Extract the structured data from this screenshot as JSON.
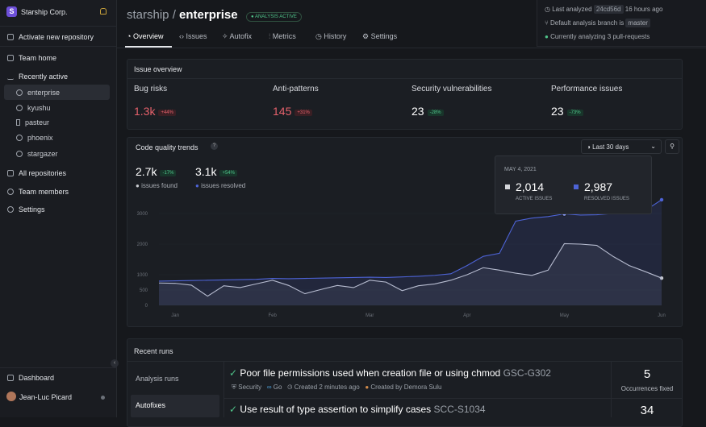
{
  "sidebar": {
    "org": "Starship Corp.",
    "org_initial": "S",
    "activate": "Activate new repository",
    "team_home": "Team home",
    "recently_active": "Recently active",
    "repos": [
      "enterprise",
      "kyushu",
      "pasteur",
      "phoenix",
      "stargazer"
    ],
    "all_repos": "All repositories",
    "team_members": "Team members",
    "settings": "Settings",
    "dashboard": "Dashboard",
    "user": "Jean-Luc Picard"
  },
  "header": {
    "owner": "starship",
    "separator": "/",
    "repo": "enterprise",
    "badge": "ANALYSIS ACTIVE",
    "last_analyzed": "Last analyzed",
    "commit": "24cd56d",
    "ago": "16 hours ago",
    "branch_text": "Default analysis branch is",
    "branch": "master",
    "analyzing": "Currently analyzing 3 pull-requests"
  },
  "tabs": [
    "Overview",
    "Issues",
    "Autofix",
    "Metrics",
    "History",
    "Settings"
  ],
  "issue_overview": {
    "title": "Issue overview",
    "items": [
      {
        "label": "Bug risks",
        "value": "1.3k",
        "change": "+44%"
      },
      {
        "label": "Anti-patterns",
        "value": "145",
        "change": "+31%"
      },
      {
        "label": "Security vulnerabilities",
        "value": "23",
        "change": "-28%"
      },
      {
        "label": "Performance issues",
        "value": "23",
        "change": "-73%"
      }
    ]
  },
  "trends": {
    "title": "Code quality trends",
    "help": "?",
    "range": "Last 30 days",
    "stats": [
      {
        "value": "2.7k",
        "change": "-17%"
      },
      {
        "value": "3.1k",
        "change": "+54%"
      }
    ],
    "tooltip": {
      "date": "MAY 4, 2021",
      "items": [
        {
          "value": "2,014",
          "label": "ACTIVE ISSUES"
        },
        {
          "value": "2,987",
          "label": "RESOLVED ISSUES"
        }
      ]
    }
  },
  "chart_data": {
    "type": "line",
    "categories": [
      null,
      "Jan",
      null,
      null,
      null,
      null,
      null,
      "Feb",
      null,
      null,
      null,
      null,
      null,
      "Mar",
      null,
      null,
      null,
      null,
      null,
      "Apr",
      null,
      null,
      null,
      null,
      null,
      "May",
      null,
      null,
      null,
      null,
      null,
      "Jun"
    ],
    "ylim": [
      0,
      3500
    ],
    "yticks": [
      0,
      500,
      1000,
      2000,
      3000
    ],
    "grid": true,
    "series": [
      {
        "name": "issues found",
        "color": "#c9cbd0",
        "values": [
          730,
          720,
          660,
          300,
          640,
          580,
          700,
          820,
          650,
          380,
          520,
          650,
          580,
          820,
          760,
          480,
          640,
          700,
          820,
          1000,
          1230,
          1150,
          1050,
          980,
          1150,
          2014,
          2000,
          1960,
          1600,
          1300,
          1100,
          890
        ]
      },
      {
        "name": "issues resolved",
        "color": "#4d63d6",
        "values": [
          790,
          800,
          810,
          820,
          830,
          840,
          850,
          880,
          870,
          880,
          890,
          900,
          910,
          920,
          910,
          930,
          950,
          980,
          1030,
          1300,
          1600,
          1700,
          2750,
          2850,
          2900,
          2987,
          2950,
          2960,
          3000,
          3050,
          3100,
          3450
        ]
      }
    ]
  },
  "recent_runs": {
    "title": "Recent runs",
    "tabs": [
      "Analysis runs",
      "Autofixes"
    ],
    "runs": [
      {
        "title": "Poor file permissions used when creation file or using chmod",
        "code": "GSC-G302",
        "category": "Security",
        "language": "Go",
        "created": "Created 2 minutes ago",
        "author": "Created by Demora Sulu",
        "count": "5",
        "count_label": "Occurrences fixed"
      },
      {
        "title": "Use result of type assertion to simplify cases",
        "code": "SCC-S1034",
        "count": "34"
      }
    ]
  }
}
